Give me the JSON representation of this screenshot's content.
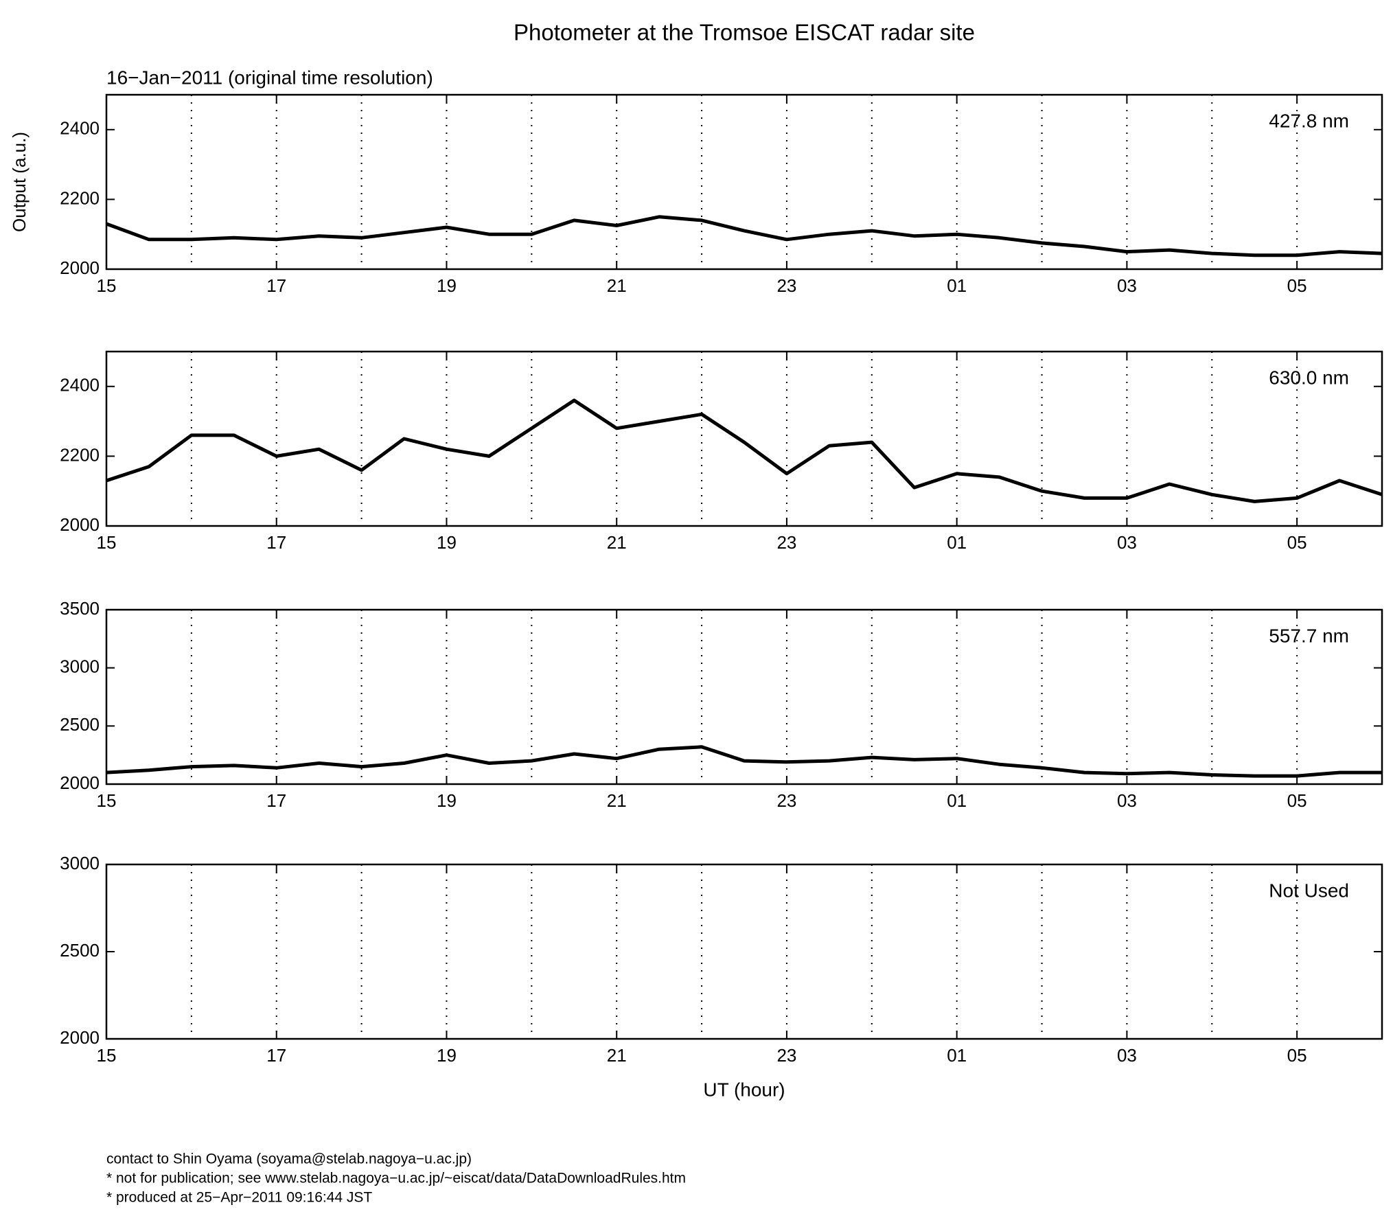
{
  "chart_data": [
    {
      "type": "line",
      "title": "Photometer at the Tromsoe EISCAT radar site",
      "subtitle": "16−Jan−2011 (original time resolution)",
      "ylabel": "Output (a.u.)",
      "label": "427.8 nm",
      "xlim": [
        15,
        30
      ],
      "xticks": [
        15,
        17,
        19,
        21,
        23,
        {
          "value": 25,
          "label": "01"
        },
        {
          "value": 27,
          "label": "03"
        },
        {
          "value": 29,
          "label": "05"
        }
      ],
      "xgrid": [
        16,
        17,
        18,
        19,
        20,
        21,
        22,
        23,
        24,
        25,
        26,
        27,
        28,
        29
      ],
      "ylim": [
        2000,
        2500
      ],
      "yticks": [
        2000,
        2200,
        2400
      ],
      "x": [
        15,
        15.5,
        16,
        16.5,
        17,
        17.5,
        18,
        18.5,
        19,
        19.5,
        20,
        20.5,
        21,
        21.5,
        22,
        22.5,
        23,
        23.5,
        24,
        24.5,
        25,
        25.5,
        26,
        26.5,
        27,
        27.5,
        28,
        28.5,
        29,
        29.5,
        30
      ],
      "series": [
        {
          "color": "#000000",
          "values": [
            2130,
            2085,
            2085,
            2090,
            2085,
            2095,
            2090,
            2105,
            2120,
            2100,
            2100,
            2140,
            2125,
            2150,
            2140,
            2110,
            2085,
            2100,
            2110,
            2095,
            2100,
            2090,
            2075,
            2065,
            2050,
            2055,
            2045,
            2040,
            2040,
            2050,
            2045
          ]
        }
      ]
    },
    {
      "type": "line",
      "label": "630.0 nm",
      "xlim": [
        15,
        30
      ],
      "xticks": [
        15,
        17,
        19,
        21,
        23,
        {
          "value": 25,
          "label": "01"
        },
        {
          "value": 27,
          "label": "03"
        },
        {
          "value": 29,
          "label": "05"
        }
      ],
      "xgrid": [
        16,
        17,
        18,
        19,
        20,
        21,
        22,
        23,
        24,
        25,
        26,
        27,
        28,
        29
      ],
      "ylim": [
        2000,
        2500
      ],
      "yticks": [
        2000,
        2200,
        2400
      ],
      "x": [
        15,
        15.5,
        16,
        16.5,
        17,
        17.5,
        18,
        18.5,
        19,
        19.5,
        20,
        20.5,
        21,
        21.5,
        22,
        22.5,
        23,
        23.5,
        24,
        24.5,
        25,
        25.5,
        26,
        26.5,
        27,
        27.5,
        28,
        28.5,
        29,
        29.5,
        30
      ],
      "series": [
        {
          "color": "#000000",
          "values": [
            2130,
            2170,
            2260,
            2260,
            2200,
            2220,
            2160,
            2250,
            2220,
            2200,
            2280,
            2360,
            2280,
            2300,
            2320,
            2240,
            2150,
            2230,
            2240,
            2110,
            2150,
            2140,
            2100,
            2080,
            2080,
            2120,
            2090,
            2070,
            2080,
            2130,
            2090
          ]
        }
      ]
    },
    {
      "type": "line",
      "label": "557.7 nm",
      "xlim": [
        15,
        30
      ],
      "xticks": [
        15,
        17,
        19,
        21,
        23,
        {
          "value": 25,
          "label": "01"
        },
        {
          "value": 27,
          "label": "03"
        },
        {
          "value": 29,
          "label": "05"
        }
      ],
      "xgrid": [
        16,
        17,
        18,
        19,
        20,
        21,
        22,
        23,
        24,
        25,
        26,
        27,
        28,
        29
      ],
      "ylim": [
        2000,
        3500
      ],
      "yticks": [
        2000,
        2500,
        3000,
        3500
      ],
      "x": [
        15,
        15.5,
        16,
        16.5,
        17,
        17.5,
        18,
        18.5,
        19,
        19.5,
        20,
        20.5,
        21,
        21.5,
        22,
        22.5,
        23,
        23.5,
        24,
        24.5,
        25,
        25.5,
        26,
        26.5,
        27,
        27.5,
        28,
        28.5,
        29,
        29.5,
        30
      ],
      "series": [
        {
          "color": "#000000",
          "values": [
            2100,
            2120,
            2150,
            2160,
            2140,
            2180,
            2150,
            2180,
            2250,
            2180,
            2200,
            2260,
            2220,
            2300,
            2320,
            2200,
            2190,
            2200,
            2230,
            2210,
            2220,
            2170,
            2140,
            2100,
            2090,
            2100,
            2080,
            2070,
            2070,
            2100,
            2100
          ]
        }
      ]
    },
    {
      "type": "line",
      "label": "Not Used",
      "xlabel": "UT (hour)",
      "xlim": [
        15,
        30
      ],
      "xticks": [
        15,
        17,
        19,
        21,
        23,
        {
          "value": 25,
          "label": "01"
        },
        {
          "value": 27,
          "label": "03"
        },
        {
          "value": 29,
          "label": "05"
        }
      ],
      "xgrid": [
        16,
        17,
        18,
        19,
        20,
        21,
        22,
        23,
        24,
        25,
        26,
        27,
        28,
        29
      ],
      "ylim": [
        2000,
        3000
      ],
      "yticks": [
        2000,
        2500,
        3000
      ],
      "series": []
    }
  ],
  "footer": [
    "contact to Shin Oyama (soyama@stelab.nagoya−u.ac.jp)",
    "* not for publication; see www.stelab.nagoya−u.ac.jp/~eiscat/data/DataDownloadRules.htm",
    "* produced at 25−Apr−2011 09:16:44 JST"
  ]
}
